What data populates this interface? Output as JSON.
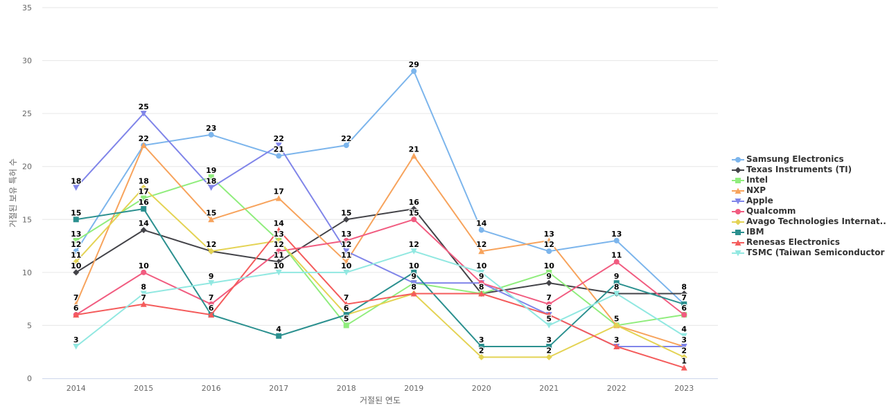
{
  "chart_data": {
    "type": "line",
    "title": "",
    "xlabel": "거절된 연도",
    "ylabel": "거절된 보유 특허 수",
    "ylim": [
      0,
      35
    ],
    "yticks": [
      0,
      5,
      10,
      15,
      20,
      25,
      30,
      35
    ],
    "grid": true,
    "legend_position": "right",
    "categories": [
      "2014",
      "2015",
      "2016",
      "2017",
      "2018",
      "2019",
      "2020",
      "2021",
      "2022",
      "2023"
    ],
    "series": [
      {
        "name": "Samsung Electronics",
        "color": "#7cb5ec",
        "marker": "circle",
        "values": [
          12,
          22,
          23,
          21,
          22,
          29,
          14,
          12,
          13,
          7
        ]
      },
      {
        "name": "Texas Instruments (TI)",
        "color": "#434348",
        "marker": "diamond",
        "values": [
          10,
          14,
          12,
          11,
          15,
          16,
          8,
          9,
          8,
          8
        ]
      },
      {
        "name": "Intel",
        "color": "#90ed7d",
        "marker": "square",
        "values": [
          13,
          17,
          19,
          13,
          5,
          9,
          8,
          10,
          5,
          6
        ]
      },
      {
        "name": "NXP",
        "color": "#f7a35c",
        "marker": "triangle",
        "values": [
          7,
          22,
          15,
          17,
          11,
          21,
          12,
          13,
          5,
          3
        ]
      },
      {
        "name": "Apple",
        "color": "#8085e9",
        "marker": "triangle-down",
        "values": [
          18,
          25,
          18,
          22,
          12,
          9,
          9,
          6,
          3,
          3
        ]
      },
      {
        "name": "Qualcomm",
        "color": "#f15c80",
        "marker": "circle",
        "values": [
          6,
          10,
          7,
          12,
          13,
          15,
          9,
          7,
          11,
          6
        ]
      },
      {
        "name": "Avago Technologies Internat...",
        "color": "#e4d354",
        "marker": "diamond",
        "values": [
          11,
          18,
          12,
          13,
          6,
          8,
          2,
          2,
          5,
          2
        ]
      },
      {
        "name": "IBM",
        "color": "#2b908f",
        "marker": "square",
        "values": [
          15,
          16,
          6,
          4,
          6,
          10,
          3,
          3,
          9,
          7
        ]
      },
      {
        "name": "Renesas Electronics",
        "color": "#f45b5b",
        "marker": "triangle",
        "values": [
          6,
          7,
          6,
          14,
          7,
          8,
          8,
          6,
          3,
          1
        ]
      },
      {
        "name": "TSMC (Taiwan Semiconductor ...",
        "color": "#91e8e1",
        "marker": "triangle-down",
        "values": [
          3,
          8,
          9,
          10,
          10,
          12,
          10,
          5,
          8,
          4
        ]
      }
    ]
  }
}
